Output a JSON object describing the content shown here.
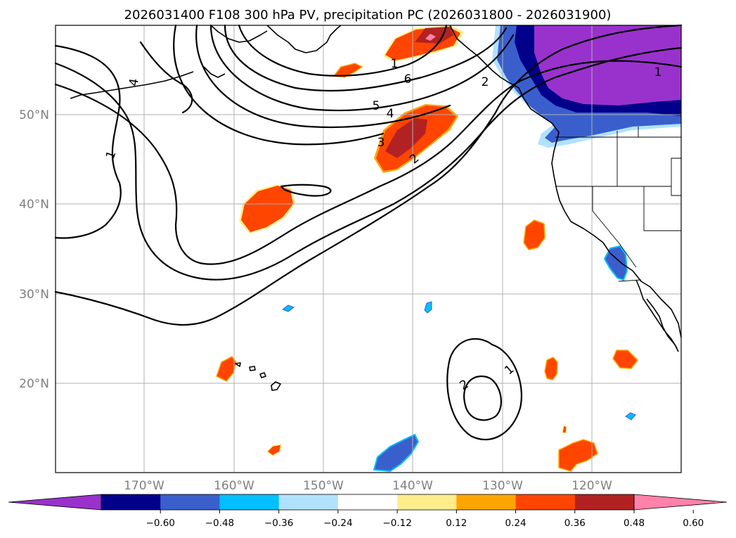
{
  "title": "2026031400 F108 300 hPa PV, precipitation PC (2026031800 - 2026031900)",
  "lat_labels": [
    "50°N",
    "40°N",
    "30°N",
    "20°N"
  ],
  "lon_labels": [
    "170°W",
    "160°W",
    "150°W",
    "140°W",
    "130°W",
    "120°W"
  ],
  "contour_labels": [
    "1",
    "1",
    "1",
    "1",
    "2",
    "2",
    "2",
    "3",
    "4",
    "4",
    "5",
    "6"
  ],
  "colorbar": {
    "tick_labels": [
      "−0.60",
      "−0.48",
      "−0.36",
      "−0.24",
      "−0.12",
      "0.12",
      "0.24",
      "0.36",
      "0.48",
      "0.60"
    ],
    "colors": [
      "#9932cc",
      "#00008b",
      "#3a5fcd",
      "#00bfff",
      "#b0e2ff",
      "#ffffff",
      "#ffec8b",
      "#ffa500",
      "#ff4500",
      "#b22222",
      "#ff82ab"
    ]
  },
  "chart_data": {
    "type": "map-contour",
    "projection": "lat-lon",
    "lon_range": [
      -180,
      -110
    ],
    "lat_range": [
      10,
      60
    ],
    "contour_field": "300 hPa PV",
    "contour_levels": [
      1,
      2,
      3,
      4,
      5,
      6
    ],
    "shaded_field": "precipitation PC",
    "shaded_levels": [
      -0.6,
      -0.48,
      -0.36,
      -0.24,
      -0.12,
      0.12,
      0.24,
      0.36,
      0.48,
      0.6
    ]
  }
}
